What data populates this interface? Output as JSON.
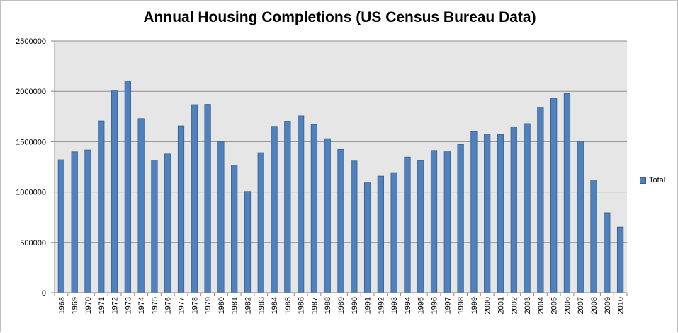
{
  "chart_data": {
    "type": "bar",
    "title": "Annual Housing Completions (US Census Bureau Data)",
    "xlabel": "",
    "ylabel": "",
    "ylim": [
      0,
      2500000
    ],
    "yticks": [
      0,
      500000,
      1000000,
      1500000,
      2000000,
      2500000
    ],
    "ytick_labels": [
      "0",
      "500000",
      "1000000",
      "1500000",
      "2000000",
      "2500000"
    ],
    "grid": true,
    "legend_position": "right",
    "categories": [
      "1968",
      "1969",
      "1970",
      "1971",
      "1972",
      "1973",
      "1974",
      "1975",
      "1976",
      "1977",
      "1978",
      "1979",
      "1980",
      "1981",
      "1982",
      "1983",
      "1984",
      "1985",
      "1986",
      "1987",
      "1988",
      "1989",
      "1990",
      "1991",
      "1992",
      "1993",
      "1994",
      "1995",
      "1996",
      "1997",
      "1998",
      "1999",
      "2000",
      "2001",
      "2002",
      "2003",
      "2004",
      "2005",
      "2006",
      "2007",
      "2008",
      "2009",
      "2010"
    ],
    "series": [
      {
        "name": "Total",
        "color": "#4f81bd",
        "values": [
          1320000,
          1399000,
          1418000,
          1706000,
          2004000,
          2101000,
          1729000,
          1317000,
          1377000,
          1657000,
          1868000,
          1871000,
          1502000,
          1266000,
          1006000,
          1390000,
          1652000,
          1703000,
          1756000,
          1669000,
          1530000,
          1423000,
          1308000,
          1091000,
          1158000,
          1193000,
          1347000,
          1313000,
          1413000,
          1400000,
          1474000,
          1605000,
          1574000,
          1571000,
          1648000,
          1679000,
          1842000,
          1932000,
          1979000,
          1503000,
          1120000,
          794000,
          652000
        ]
      }
    ]
  },
  "colors": {
    "plot_background": "#e6e6e6",
    "bar_fill": "#4f81bd",
    "bar_stroke": "#385d8a",
    "gridline": "#8c8c8c"
  }
}
